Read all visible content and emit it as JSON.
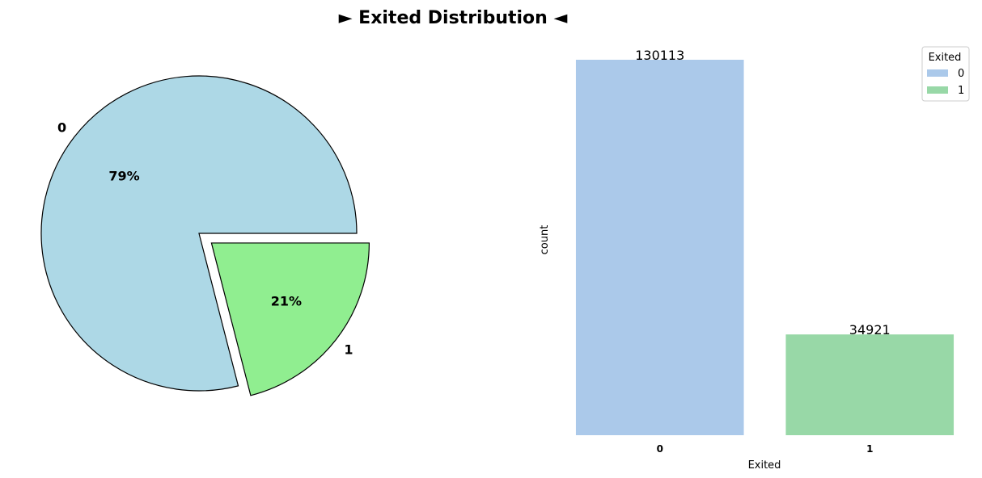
{
  "title": "► Exited Distribution ◄",
  "chart_data": [
    {
      "type": "pie",
      "labels": [
        "0",
        "1"
      ],
      "values": [
        79,
        21
      ],
      "autopct_labels": [
        "79%",
        "21%"
      ],
      "colors": [
        "#add8e6",
        "#90ee90"
      ],
      "explode": [
        0,
        0.1
      ],
      "edgecolor": "#000000"
    },
    {
      "type": "bar",
      "categories": [
        "0",
        "1"
      ],
      "values": [
        130113,
        34921
      ],
      "value_labels": [
        "130113",
        "34921"
      ],
      "colors": [
        "#abc9ea",
        "#98d8a7"
      ],
      "xlabel": "Exited",
      "ylabel": "count",
      "ylim": [
        0,
        130113
      ],
      "legend": {
        "title": "Exited",
        "entries": [
          "0",
          "1"
        ],
        "position": "top-right"
      },
      "grid": false
    }
  ]
}
